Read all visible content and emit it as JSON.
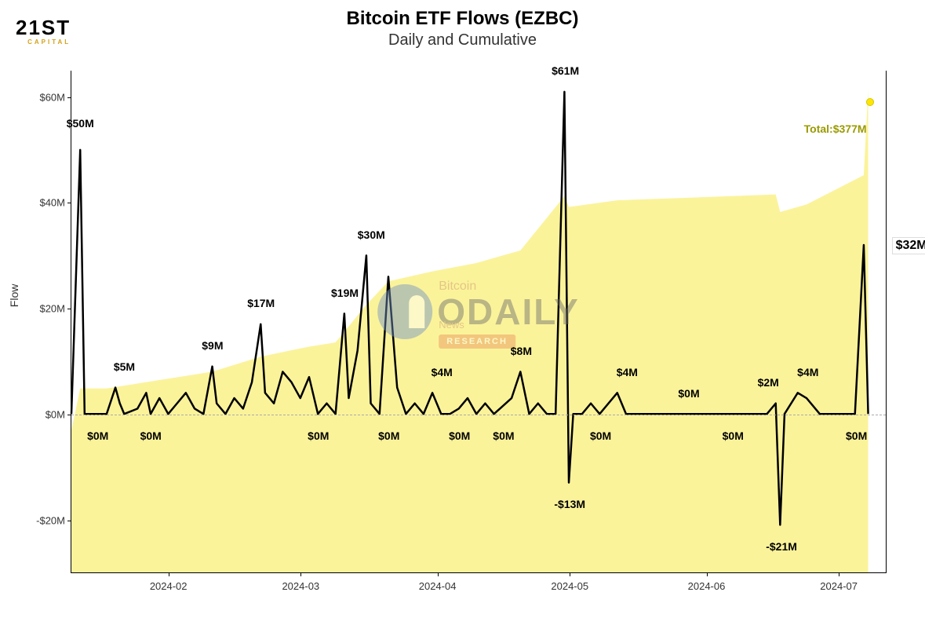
{
  "logo": {
    "main": "21ST",
    "sub": "CAPITAL"
  },
  "title": "Bitcoin ETF Flows (EZBC)",
  "subtitle": "Daily and Cumulative",
  "y_axis": {
    "label": "Flow",
    "min": -30,
    "max": 65,
    "ticks": [
      {
        "v": -20,
        "label": "-$20M"
      },
      {
        "v": 0,
        "label": "$0M"
      },
      {
        "v": 20,
        "label": "$20M"
      },
      {
        "v": 40,
        "label": "$40M"
      },
      {
        "v": 60,
        "label": "$60M"
      }
    ]
  },
  "x_axis": {
    "min": 0,
    "max": 185,
    "ticks": [
      {
        "v": 22,
        "label": "2024-02"
      },
      {
        "v": 52,
        "label": "2024-03"
      },
      {
        "v": 83,
        "label": "2024-04"
      },
      {
        "v": 113,
        "label": "2024-05"
      },
      {
        "v": 144,
        "label": "2024-06"
      },
      {
        "v": 174,
        "label": "2024-07"
      }
    ]
  },
  "daily_flow": [
    {
      "d": 0,
      "v": 0
    },
    {
      "d": 2,
      "v": 50
    },
    {
      "d": 3,
      "v": 0
    },
    {
      "d": 6,
      "v": 0
    },
    {
      "d": 8,
      "v": 0
    },
    {
      "d": 10,
      "v": 5
    },
    {
      "d": 11,
      "v": 2
    },
    {
      "d": 12,
      "v": 0
    },
    {
      "d": 15,
      "v": 1
    },
    {
      "d": 17,
      "v": 4
    },
    {
      "d": 18,
      "v": 0
    },
    {
      "d": 20,
      "v": 3
    },
    {
      "d": 22,
      "v": 0
    },
    {
      "d": 24,
      "v": 2
    },
    {
      "d": 26,
      "v": 4
    },
    {
      "d": 28,
      "v": 1
    },
    {
      "d": 30,
      "v": 0
    },
    {
      "d": 32,
      "v": 9
    },
    {
      "d": 33,
      "v": 2
    },
    {
      "d": 35,
      "v": 0
    },
    {
      "d": 37,
      "v": 3
    },
    {
      "d": 39,
      "v": 1
    },
    {
      "d": 41,
      "v": 6
    },
    {
      "d": 43,
      "v": 17
    },
    {
      "d": 44,
      "v": 4
    },
    {
      "d": 46,
      "v": 2
    },
    {
      "d": 48,
      "v": 8
    },
    {
      "d": 50,
      "v": 6
    },
    {
      "d": 52,
      "v": 3
    },
    {
      "d": 54,
      "v": 7
    },
    {
      "d": 56,
      "v": 0
    },
    {
      "d": 58,
      "v": 2
    },
    {
      "d": 60,
      "v": 0
    },
    {
      "d": 62,
      "v": 19
    },
    {
      "d": 63,
      "v": 3
    },
    {
      "d": 65,
      "v": 12
    },
    {
      "d": 67,
      "v": 30
    },
    {
      "d": 68,
      "v": 2
    },
    {
      "d": 70,
      "v": 0
    },
    {
      "d": 72,
      "v": 26
    },
    {
      "d": 74,
      "v": 5
    },
    {
      "d": 76,
      "v": 0
    },
    {
      "d": 78,
      "v": 2
    },
    {
      "d": 80,
      "v": 0
    },
    {
      "d": 82,
      "v": 4
    },
    {
      "d": 84,
      "v": 0
    },
    {
      "d": 86,
      "v": 0
    },
    {
      "d": 88,
      "v": 1
    },
    {
      "d": 90,
      "v": 3
    },
    {
      "d": 92,
      "v": 0
    },
    {
      "d": 94,
      "v": 2
    },
    {
      "d": 96,
      "v": 0
    },
    {
      "d": 100,
      "v": 3
    },
    {
      "d": 102,
      "v": 8
    },
    {
      "d": 104,
      "v": 0
    },
    {
      "d": 106,
      "v": 2
    },
    {
      "d": 108,
      "v": 0
    },
    {
      "d": 110,
      "v": 0
    },
    {
      "d": 112,
      "v": 61
    },
    {
      "d": 113,
      "v": -13
    },
    {
      "d": 114,
      "v": 0
    },
    {
      "d": 116,
      "v": 0
    },
    {
      "d": 118,
      "v": 2
    },
    {
      "d": 120,
      "v": 0
    },
    {
      "d": 124,
      "v": 4
    },
    {
      "d": 126,
      "v": 0
    },
    {
      "d": 130,
      "v": 0
    },
    {
      "d": 134,
      "v": 0
    },
    {
      "d": 138,
      "v": 0
    },
    {
      "d": 142,
      "v": 0
    },
    {
      "d": 146,
      "v": 0
    },
    {
      "d": 150,
      "v": 0
    },
    {
      "d": 154,
      "v": 0
    },
    {
      "d": 158,
      "v": 0
    },
    {
      "d": 160,
      "v": 2
    },
    {
      "d": 161,
      "v": -21
    },
    {
      "d": 162,
      "v": 0
    },
    {
      "d": 165,
      "v": 4
    },
    {
      "d": 167,
      "v": 3
    },
    {
      "d": 170,
      "v": 0
    },
    {
      "d": 174,
      "v": 0
    },
    {
      "d": 178,
      "v": 0
    },
    {
      "d": 180,
      "v": 32
    },
    {
      "d": 181,
      "v": 0
    }
  ],
  "cumulative": [
    {
      "d": 0,
      "v": -30
    },
    {
      "d": 2,
      "v": 20
    },
    {
      "d": 8,
      "v": 20
    },
    {
      "d": 20,
      "v": 30
    },
    {
      "d": 32,
      "v": 40
    },
    {
      "d": 43,
      "v": 58
    },
    {
      "d": 54,
      "v": 70
    },
    {
      "d": 60,
      "v": 75
    },
    {
      "d": 67,
      "v": 120
    },
    {
      "d": 72,
      "v": 148
    },
    {
      "d": 82,
      "v": 160
    },
    {
      "d": 92,
      "v": 170
    },
    {
      "d": 102,
      "v": 185
    },
    {
      "d": 112,
      "v": 250
    },
    {
      "d": 113,
      "v": 237
    },
    {
      "d": 124,
      "v": 245
    },
    {
      "d": 140,
      "v": 248
    },
    {
      "d": 160,
      "v": 252
    },
    {
      "d": 161,
      "v": 231
    },
    {
      "d": 167,
      "v": 240
    },
    {
      "d": 180,
      "v": 275
    },
    {
      "d": 181,
      "v": 377
    }
  ],
  "cumulative_scale": {
    "min": -200,
    "max": 400
  },
  "annotations": [
    {
      "d": 2,
      "v": 55,
      "text": "$50M"
    },
    {
      "d": 6,
      "v": -4,
      "text": "$0M"
    },
    {
      "d": 12,
      "v": 9,
      "text": "$5M"
    },
    {
      "d": 18,
      "v": -4,
      "text": "$0M"
    },
    {
      "d": 32,
      "v": 13,
      "text": "$9M"
    },
    {
      "d": 43,
      "v": 21,
      "text": "$17M"
    },
    {
      "d": 56,
      "v": -4,
      "text": "$0M"
    },
    {
      "d": 62,
      "v": 23,
      "text": "$19M"
    },
    {
      "d": 68,
      "v": 34,
      "text": "$30M"
    },
    {
      "d": 72,
      "v": -4,
      "text": "$0M"
    },
    {
      "d": 84,
      "v": 8,
      "text": "$4M"
    },
    {
      "d": 88,
      "v": -4,
      "text": "$0M"
    },
    {
      "d": 102,
      "v": 12,
      "text": "$8M"
    },
    {
      "d": 98,
      "v": -4,
      "text": "$0M"
    },
    {
      "d": 112,
      "v": 65,
      "text": "$61M"
    },
    {
      "d": 113,
      "v": -17,
      "text": "-$13M"
    },
    {
      "d": 120,
      "v": -4,
      "text": "$0M"
    },
    {
      "d": 126,
      "v": 8,
      "text": "$4M"
    },
    {
      "d": 140,
      "v": 4,
      "text": "$0M"
    },
    {
      "d": 150,
      "v": -4,
      "text": "$0M"
    },
    {
      "d": 158,
      "v": 6,
      "text": "$2M"
    },
    {
      "d": 161,
      "v": -25,
      "text": "-$21M"
    },
    {
      "d": 167,
      "v": 8,
      "text": "$4M"
    },
    {
      "d": 178,
      "v": -4,
      "text": "$0M"
    }
  ],
  "total_label": {
    "text": "Total:$377M",
    "d": 181,
    "v": 54
  },
  "last_label": {
    "text": "$32M",
    "d": 186,
    "v": 32
  },
  "end_dot": {
    "d": 181,
    "v": 59
  },
  "colors": {
    "area_fill": "#fbf39a",
    "line": "#000000",
    "zero_dash": "#aaaaaa",
    "total_text": "#9a9a00",
    "background": "#ffffff",
    "end_dot": "#ffe600"
  },
  "line_width": 2.5,
  "watermark": {
    "bitcoin": "Bitcoin",
    "main": "ODAILY",
    "news": "News",
    "research": "RESEARCH"
  }
}
